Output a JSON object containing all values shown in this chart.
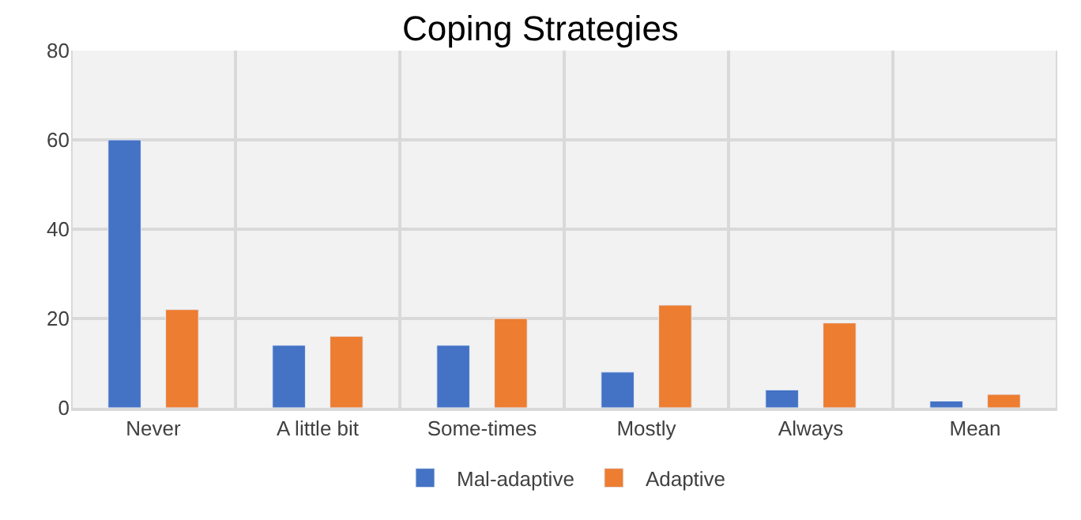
{
  "chart_data": {
    "type": "bar",
    "title": "Coping Strategies",
    "categories": [
      "Never",
      "A little bit",
      "Some-times",
      "Mostly",
      "Always",
      "Mean"
    ],
    "series": [
      {
        "name": "Mal-adaptive",
        "color": "#4472c4",
        "values": [
          60,
          14,
          14,
          8,
          4,
          1.5
        ]
      },
      {
        "name": "Adaptive",
        "color": "#ed7d31",
        "values": [
          22,
          16,
          20,
          23,
          19,
          3
        ]
      }
    ],
    "ylim": [
      0,
      80
    ],
    "yticks": [
      0,
      20,
      40,
      60,
      80
    ],
    "grid": true,
    "legend": "bottom"
  }
}
